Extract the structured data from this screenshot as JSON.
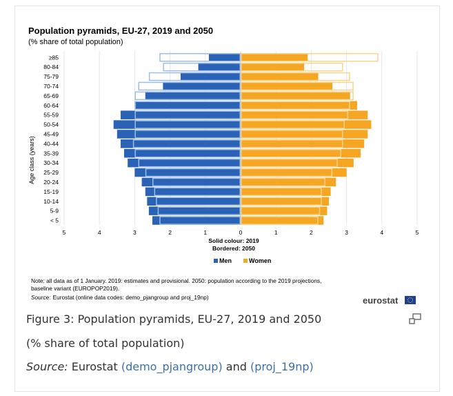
{
  "chart_data": {
    "type": "bar",
    "orientation": "horizontal-pyramid",
    "title": "Population pyramids, EU-27, 2019 and 2050",
    "subtitle": "(% share of total population)",
    "ylabel": "Age class (years)",
    "categories": [
      "≥85",
      "80-84",
      "75-79",
      "70-74",
      "65-69",
      "60-64",
      "55-59",
      "50-54",
      "45-49",
      "40-44",
      "35-39",
      "30-34",
      "25-29",
      "20-24",
      "15-19",
      "10-14",
      "5-9",
      "< 5"
    ],
    "xlim": [
      -5,
      5
    ],
    "x_ticks": [
      {
        "value": -5,
        "label": "5"
      },
      {
        "value": -4,
        "label": "4"
      },
      {
        "value": -3,
        "label": "3"
      },
      {
        "value": -2,
        "label": "2"
      },
      {
        "value": -1,
        "label": "1"
      },
      {
        "value": 0,
        "label": "0"
      },
      {
        "value": 1,
        "label": "1"
      },
      {
        "value": 2,
        "label": "2"
      },
      {
        "value": 3,
        "label": "3"
      },
      {
        "value": 4,
        "label": "4"
      },
      {
        "value": 5,
        "label": "5"
      }
    ],
    "series": [
      {
        "name": "Men 2019",
        "side": "left",
        "style": "solid",
        "values": [
          0.9,
          1.2,
          1.7,
          2.2,
          2.7,
          3.0,
          3.4,
          3.6,
          3.5,
          3.4,
          3.3,
          3.2,
          3.0,
          2.8,
          2.7,
          2.65,
          2.6,
          2.5
        ]
      },
      {
        "name": "Women 2019",
        "side": "right",
        "style": "solid",
        "values": [
          1.9,
          1.8,
          2.2,
          2.6,
          3.1,
          3.3,
          3.6,
          3.7,
          3.6,
          3.5,
          3.4,
          3.2,
          3.0,
          2.7,
          2.55,
          2.5,
          2.45,
          2.35
        ]
      },
      {
        "name": "Men 2050",
        "side": "left",
        "style": "bordered",
        "values": [
          2.3,
          2.2,
          2.6,
          2.9,
          3.0,
          3.0,
          3.0,
          3.0,
          3.0,
          3.05,
          3.0,
          2.9,
          2.7,
          2.5,
          2.45,
          2.4,
          2.35,
          2.3
        ]
      },
      {
        "name": "Women 2050",
        "side": "right",
        "style": "bordered",
        "values": [
          3.9,
          2.9,
          3.1,
          3.2,
          3.2,
          3.1,
          3.05,
          2.95,
          2.9,
          2.9,
          2.85,
          2.75,
          2.6,
          2.4,
          2.3,
          2.3,
          2.25,
          2.2
        ]
      }
    ],
    "annotation_solid": "Solid colour: 2019",
    "annotation_bordered": "Bordered: 2050",
    "legend": [
      {
        "label": "Men",
        "color": "#2a63b5"
      },
      {
        "label": "Women",
        "color": "#f5a623"
      }
    ],
    "legend_position": "bottom",
    "note_line1": "Note: all data as of 1 January. 2019: estimates and provisional. 2050: population according to the 2019 projections,",
    "note_line2": "baseline variant (EUROPOP2019).",
    "source_label": "Source:",
    "source_text": "Eurostat (online data codes: demo_pjangroup and proj_19np)",
    "logo_text": "eurostat",
    "colors": {
      "men": "#2a63b5",
      "women": "#f5a623",
      "men_outline": "#9dbde8",
      "women_outline": "#fad48a"
    }
  },
  "caption": {
    "title": "Figure 3: Population pyramids, EU-27, 2019 and 2050",
    "subtitle": "(% share of total population)",
    "source_label": "Source:",
    "source_prefix": " Eurostat ",
    "link1": "(demo_pjangroup)",
    "source_and": " and ",
    "link2": "(proj_19np)",
    "expand_icon": "expand-icon"
  }
}
